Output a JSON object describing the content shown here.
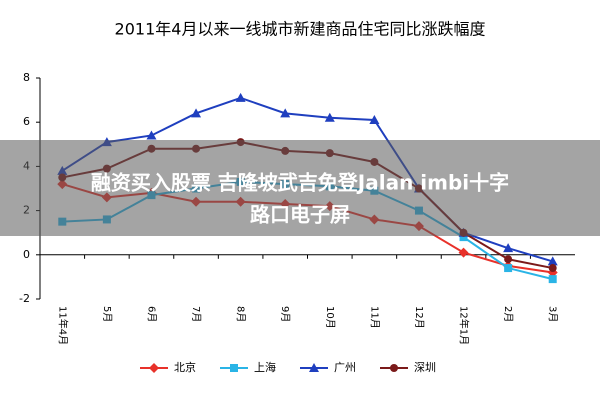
{
  "chart_data": {
    "type": "line",
    "title": "2011年4月以来一线城市新建商品住宅同比涨跌幅度",
    "categories": [
      "11年4月",
      "5月",
      "6月",
      "7月",
      "8月",
      "9月",
      "10月",
      "11月",
      "12月",
      "12年1月",
      "2月",
      "3月"
    ],
    "series": [
      {
        "name": "北京",
        "color": "#e8312a",
        "marker": "diamond",
        "values": [
          3.2,
          2.6,
          2.8,
          2.4,
          2.4,
          2.3,
          2.2,
          1.6,
          1.3,
          0.1,
          -0.5,
          -0.8
        ]
      },
      {
        "name": "上海",
        "color": "#2ab4e6",
        "marker": "square",
        "values": [
          1.5,
          1.6,
          2.7,
          3.0,
          3.3,
          3.2,
          3.1,
          2.9,
          2.0,
          0.8,
          -0.6,
          -1.1
        ]
      },
      {
        "name": "广州",
        "color": "#1f3fbf",
        "marker": "triangle",
        "values": [
          3.8,
          5.1,
          5.4,
          6.4,
          7.1,
          6.4,
          6.2,
          6.1,
          3.0,
          1.0,
          0.3,
          -0.3
        ]
      },
      {
        "name": "深圳",
        "color": "#7b1a1a",
        "marker": "circle",
        "values": [
          3.5,
          3.9,
          4.8,
          4.8,
          5.1,
          4.7,
          4.6,
          4.2,
          3.0,
          1.0,
          -0.2,
          -0.6
        ]
      }
    ],
    "ylim": [
      -2,
      8
    ],
    "yticks": [
      -2,
      0,
      2,
      4,
      6,
      8
    ],
    "grid": false,
    "legend": "bottom"
  },
  "overlay": {
    "lines": [
      "融资买入股票 吉隆坡武吉免登Jalan imbi十字",
      "路口电子屏"
    ]
  }
}
